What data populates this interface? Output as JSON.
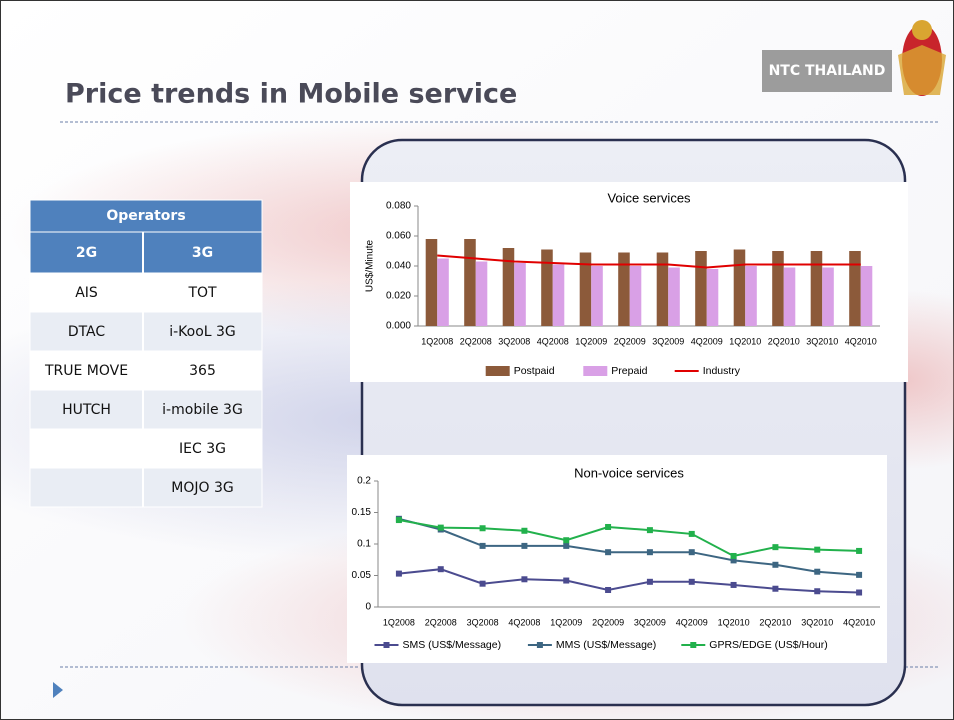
{
  "title": "Price trends in Mobile service",
  "badge": "NTC THAILAND",
  "table": {
    "header": "Operators",
    "columns": [
      "2G",
      "3G"
    ],
    "rows": [
      [
        "AIS",
        "TOT"
      ],
      [
        "DTAC",
        "i-KooL 3G"
      ],
      [
        "TRUE MOVE",
        "365"
      ],
      [
        "HUTCH",
        "i-mobile 3G"
      ],
      [
        null,
        "IEC 3G"
      ],
      [
        null,
        "MOJO 3G"
      ]
    ]
  },
  "chart_data": [
    {
      "type": "bar",
      "title": "Voice services",
      "y_label": "US$/Minute",
      "categories": [
        "1Q2008",
        "2Q2008",
        "3Q2008",
        "4Q2008",
        "1Q2009",
        "2Q2009",
        "3Q2009",
        "4Q2009",
        "1Q2010",
        "2Q2010",
        "3Q2010",
        "4Q2010"
      ],
      "series": [
        {
          "name": "Postpaid",
          "type": "bar",
          "color": "#8c5a3a",
          "values": [
            0.058,
            0.058,
            0.052,
            0.051,
            0.049,
            0.049,
            0.049,
            0.05,
            0.051,
            0.05,
            0.05,
            0.05
          ]
        },
        {
          "name": "Prepaid",
          "type": "bar",
          "color": "#d9a0e6",
          "values": [
            0.045,
            0.043,
            0.042,
            0.041,
            0.04,
            0.04,
            0.039,
            0.038,
            0.04,
            0.039,
            0.039,
            0.04
          ]
        },
        {
          "name": "Industry",
          "type": "line",
          "color": "#e00000",
          "values": [
            0.047,
            0.045,
            0.043,
            0.042,
            0.041,
            0.041,
            0.041,
            0.039,
            0.041,
            0.041,
            0.041,
            0.041
          ]
        }
      ],
      "ylim": [
        0,
        0.08
      ],
      "yticks": [
        {
          "value": 0,
          "label": "0.000"
        },
        {
          "value": 0.02,
          "label": "0.020"
        },
        {
          "value": 0.04,
          "label": "0.040"
        },
        {
          "value": 0.06,
          "label": "0.060"
        },
        {
          "value": 0.08,
          "label": "0.080"
        }
      ],
      "legend": "bottom"
    },
    {
      "type": "line",
      "title": "Non-voice services",
      "categories": [
        "1Q2008",
        "2Q2008",
        "3Q2008",
        "4Q2008",
        "1Q2009",
        "2Q2009",
        "3Q2009",
        "4Q2009",
        "1Q2010",
        "2Q2010",
        "3Q2010",
        "4Q2010"
      ],
      "series": [
        {
          "name": "SMS (US$/Message)",
          "type": "line",
          "marker": "square",
          "color": "#4b4b8f",
          "values": [
            0.053,
            0.06,
            0.037,
            0.044,
            0.042,
            0.027,
            0.04,
            0.04,
            0.035,
            0.029,
            0.025,
            0.023
          ]
        },
        {
          "name": "MMS (US$/Message)",
          "type": "line",
          "marker": "square",
          "color": "#3d6682",
          "values": [
            0.14,
            0.123,
            0.097,
            0.097,
            0.097,
            0.087,
            0.087,
            0.087,
            0.074,
            0.067,
            0.056,
            0.051
          ]
        },
        {
          "name": "GPRS/EDGE  (US$/Hour)",
          "type": "line",
          "marker": "square",
          "color": "#22b14c",
          "values": [
            0.138,
            0.126,
            0.125,
            0.121,
            0.106,
            0.127,
            0.122,
            0.116,
            0.081,
            0.095,
            0.091,
            0.089
          ]
        }
      ],
      "ylim": [
        0,
        0.2
      ],
      "yticks": [
        0,
        0.05,
        0.1,
        0.15,
        0.2
      ],
      "legend": "bottom"
    }
  ]
}
